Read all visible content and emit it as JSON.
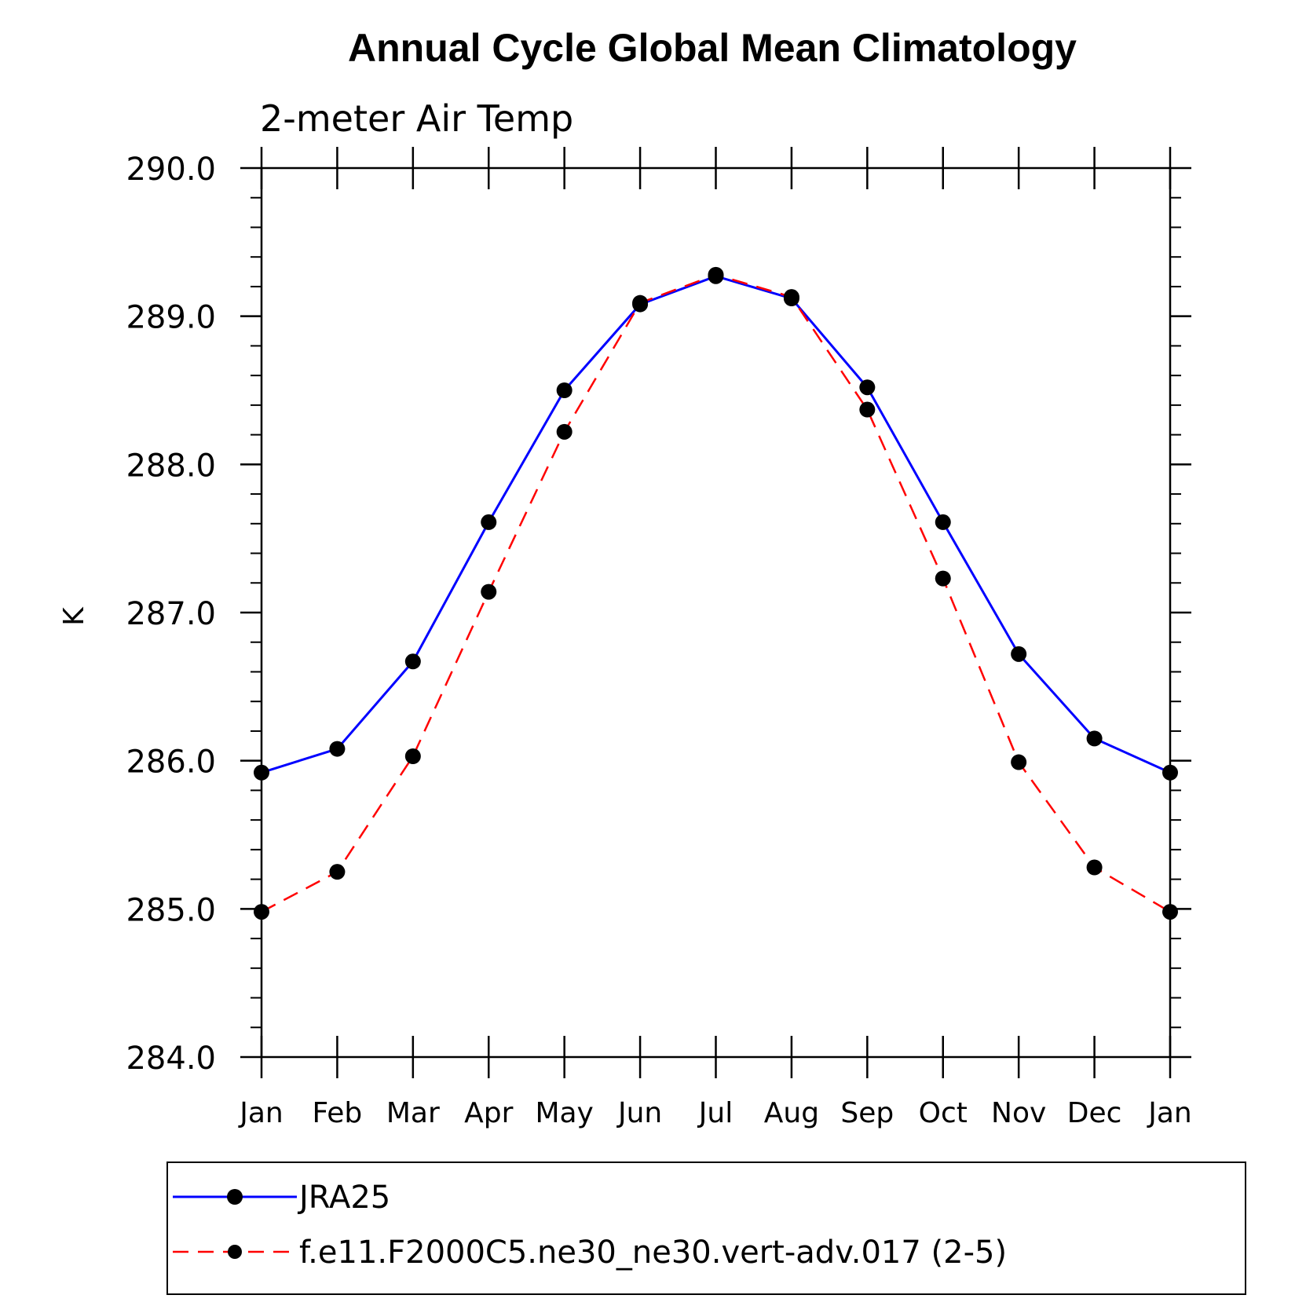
{
  "chart_data": {
    "type": "line",
    "title": "Annual Cycle Global Mean Climatology",
    "subtitle": "2-meter Air Temp",
    "ylabel": "K",
    "xlabel": "",
    "categories": [
      "Jan",
      "Feb",
      "Mar",
      "Apr",
      "May",
      "Jun",
      "Jul",
      "Aug",
      "Sep",
      "Oct",
      "Nov",
      "Dec",
      "Jan"
    ],
    "ylim": [
      284.0,
      290.0
    ],
    "yticks": [
      "284.0",
      "285.0",
      "286.0",
      "287.0",
      "288.0",
      "289.0",
      "290.0"
    ],
    "grid": false,
    "legend_position": "bottom",
    "series": [
      {
        "name": "JRA25",
        "color": "#0000ff",
        "dash": "solid",
        "marker": "filled-circle",
        "values": [
          285.92,
          286.08,
          286.67,
          287.61,
          288.5,
          289.08,
          289.27,
          289.12,
          288.52,
          287.61,
          286.72,
          286.15,
          285.92
        ]
      },
      {
        "name": "f.e11.F2000C5.ne30_ne30.vert-adv.017 (2-5)",
        "color": "#ff0000",
        "dash": "dashed",
        "marker": "filled-circle",
        "values": [
          284.98,
          285.25,
          286.03,
          287.14,
          288.22,
          289.09,
          289.28,
          289.13,
          288.37,
          287.23,
          285.99,
          285.28,
          284.98
        ]
      }
    ]
  }
}
